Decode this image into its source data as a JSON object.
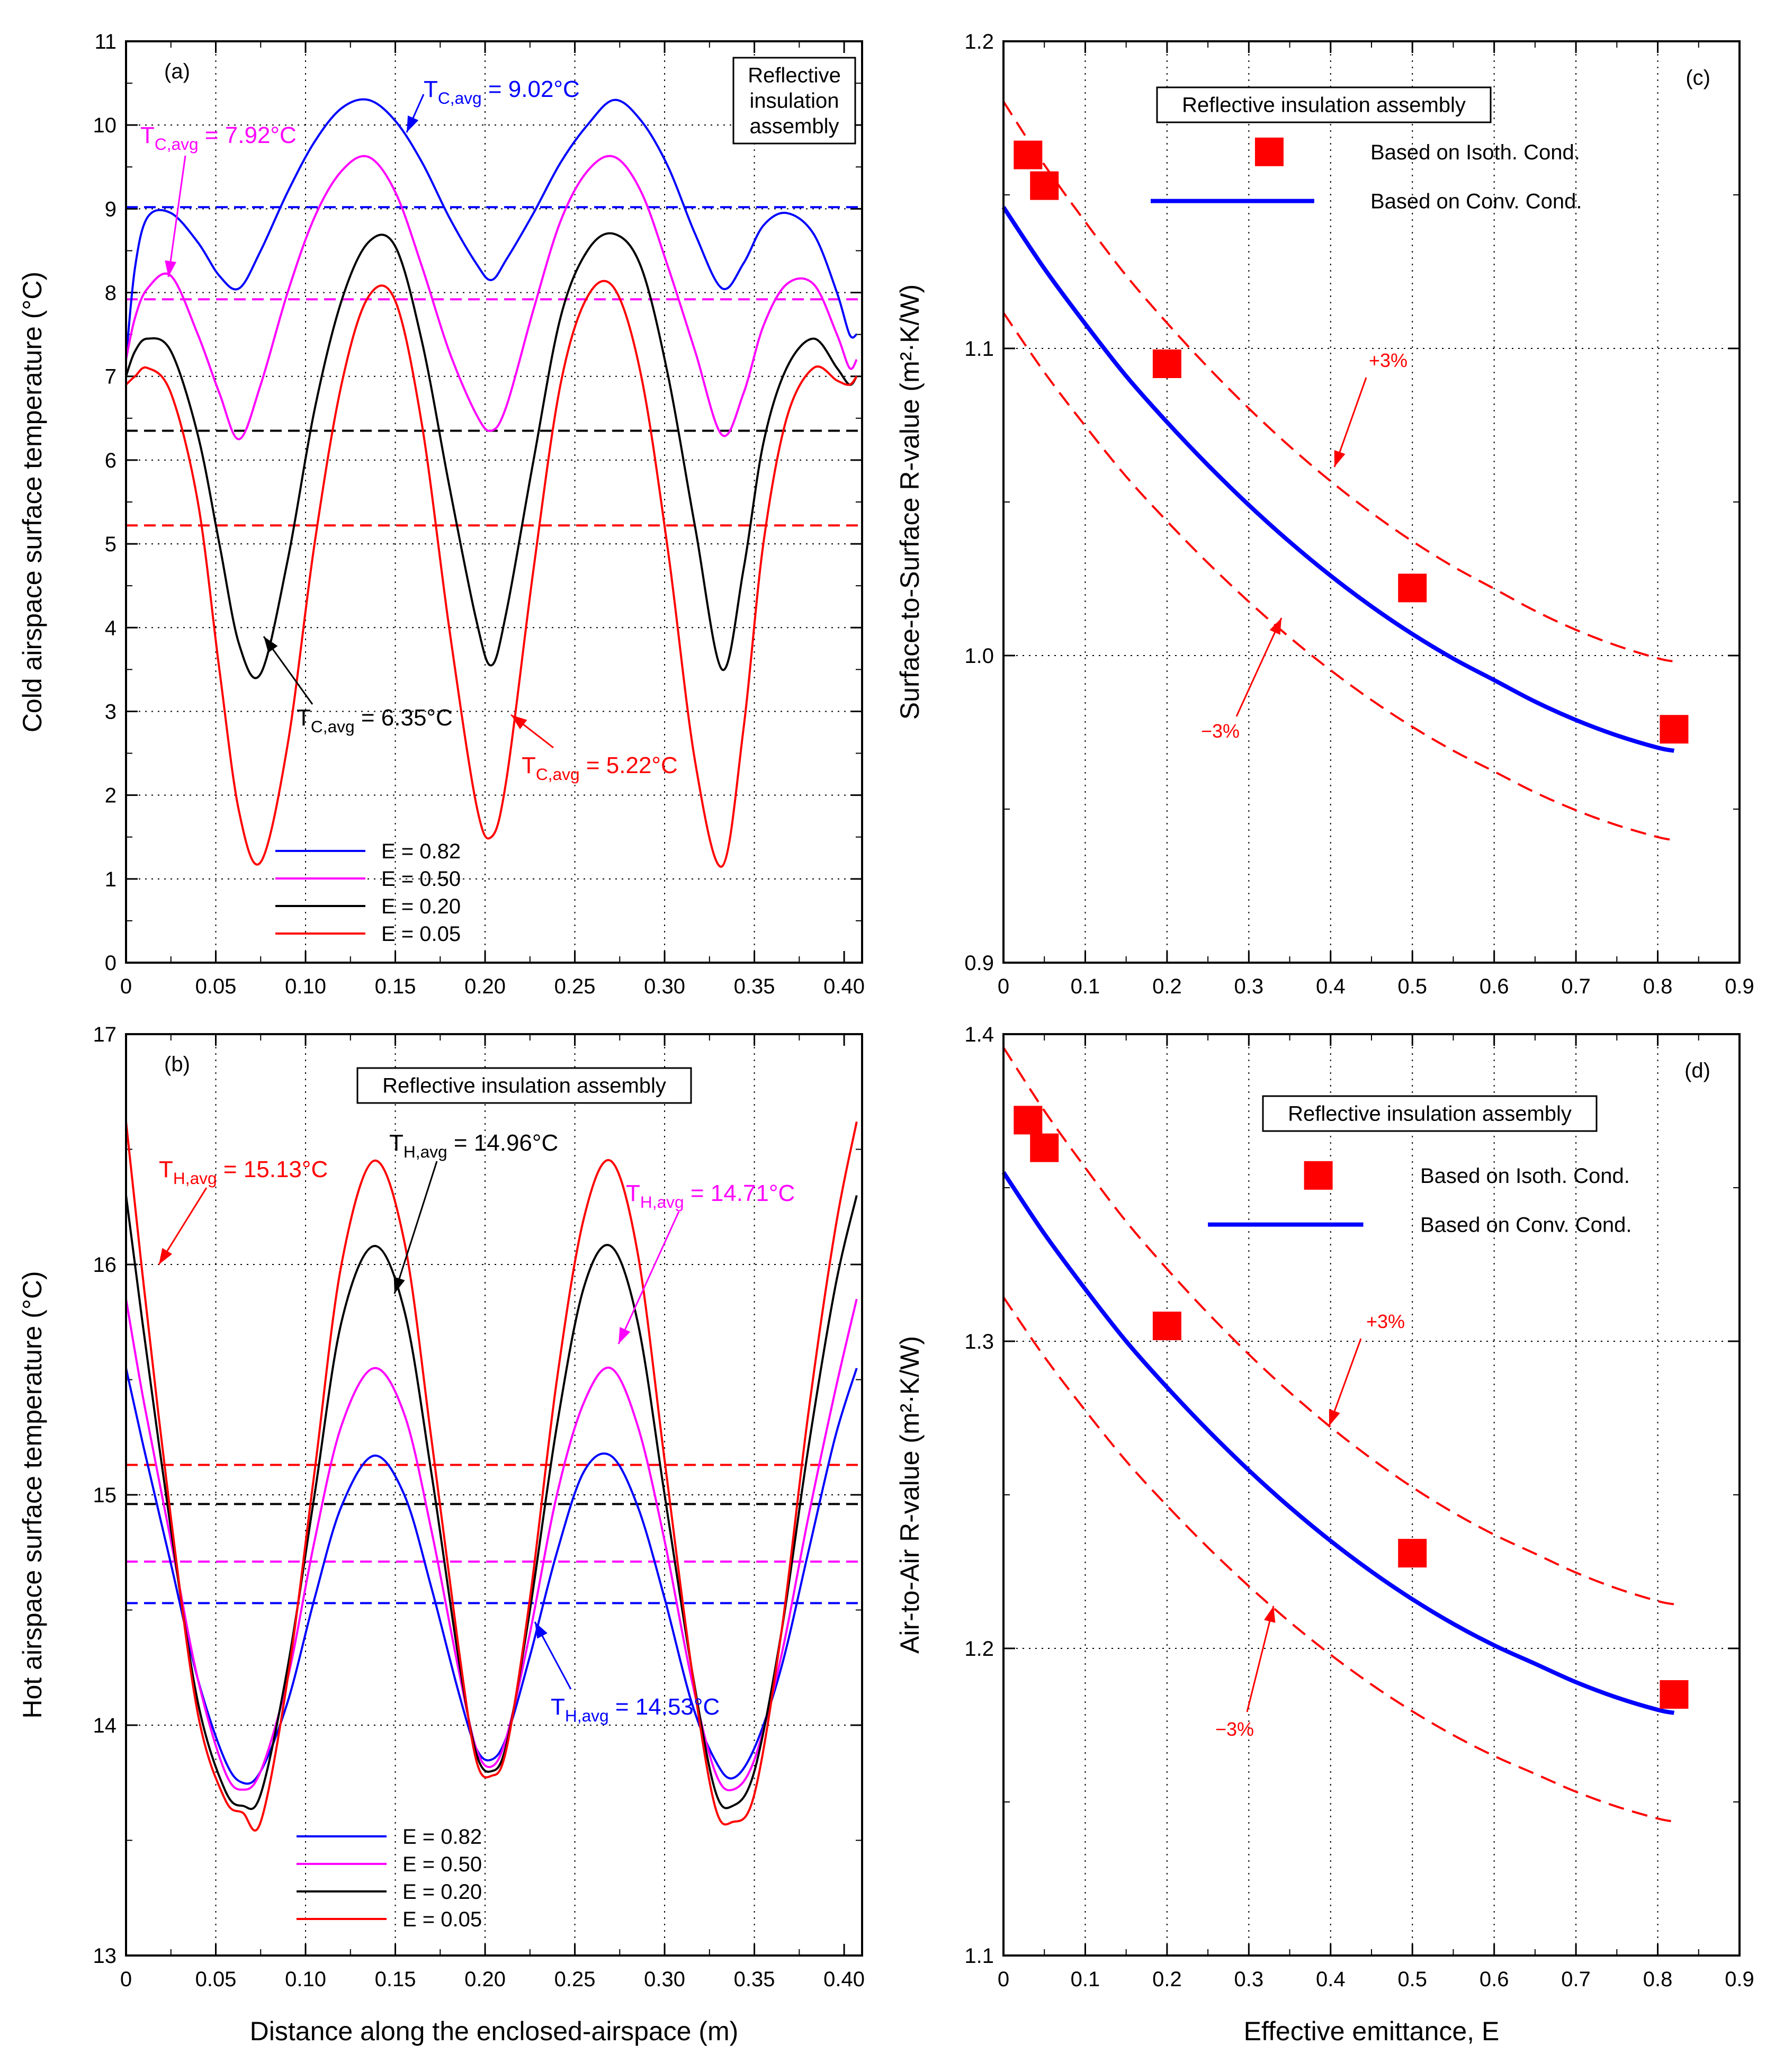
{
  "chart_data": [
    {
      "id": "a",
      "type": "line",
      "panel_label": "(a)",
      "title": "",
      "xlabel": "",
      "ylabel": "Cold airspace surface temperature (°C)",
      "xlim": [
        0,
        0.41
      ],
      "ylim": [
        0,
        11
      ],
      "xticks": [
        "0",
        "0.05",
        "0.10",
        "0.15",
        "0.20",
        "0.25",
        "0.30",
        "0.35",
        "0.40"
      ],
      "yticks": [
        "0",
        "1",
        "2",
        "3",
        "4",
        "5",
        "6",
        "7",
        "8",
        "9",
        "10",
        "11"
      ],
      "grid": true,
      "box_label": [
        "Reflective",
        "insulation",
        "assembly"
      ],
      "legend": {
        "position": "bottom-left"
      },
      "x": [
        0,
        0.005,
        0.012,
        0.025,
        0.04,
        0.052,
        0.063,
        0.075,
        0.09,
        0.105,
        0.12,
        0.135,
        0.15,
        0.165,
        0.18,
        0.195,
        0.2035,
        0.212,
        0.227,
        0.242,
        0.257,
        0.272,
        0.287,
        0.302,
        0.317,
        0.332,
        0.344,
        0.355,
        0.368,
        0.383,
        0.396,
        0.403,
        0.407
      ],
      "series": [
        {
          "name": "E = 0.82",
          "color": "#0000ff",
          "avg": 9.02,
          "values": [
            7.2,
            8.3,
            8.9,
            8.95,
            8.6,
            8.2,
            8.05,
            8.5,
            9.2,
            9.8,
            10.2,
            10.3,
            10.05,
            9.55,
            8.9,
            8.35,
            8.15,
            8.4,
            8.95,
            9.55,
            10.0,
            10.3,
            10.05,
            9.5,
            8.7,
            8.05,
            8.35,
            8.8,
            8.95,
            8.7,
            8.0,
            7.5,
            7.5
          ]
        },
        {
          "name": "E = 0.50",
          "color": "#ff00ff",
          "avg": 7.92,
          "values": [
            7.2,
            7.7,
            8.05,
            8.2,
            7.5,
            6.8,
            6.25,
            6.9,
            8.0,
            8.9,
            9.45,
            9.62,
            9.2,
            8.3,
            7.3,
            6.55,
            6.35,
            6.65,
            7.8,
            8.85,
            9.45,
            9.62,
            9.2,
            8.3,
            7.3,
            6.3,
            6.8,
            7.6,
            8.1,
            8.1,
            7.5,
            7.1,
            7.2
          ]
        },
        {
          "name": "E = 0.20",
          "color": "#000000",
          "avg": 6.35,
          "values": [
            7.0,
            7.3,
            7.45,
            7.3,
            6.3,
            5.0,
            3.8,
            3.45,
            4.8,
            6.6,
            7.9,
            8.6,
            8.55,
            7.4,
            5.7,
            4.1,
            3.55,
            4.2,
            6.0,
            7.7,
            8.5,
            8.7,
            8.3,
            7.0,
            5.2,
            3.5,
            4.7,
            6.2,
            7.1,
            7.45,
            7.1,
            6.9,
            7.0
          ]
        },
        {
          "name": "E = 0.05",
          "color": "#ff0000",
          "avg": 5.22,
          "values": [
            6.9,
            7.0,
            7.1,
            6.8,
            5.5,
            3.5,
            1.8,
            1.2,
            2.6,
            5.0,
            6.9,
            7.95,
            7.9,
            6.4,
            4.0,
            1.9,
            1.5,
            2.2,
            4.7,
            6.9,
            7.95,
            8.05,
            7.0,
            4.9,
            2.4,
            1.15,
            2.8,
            5.0,
            6.5,
            7.1,
            6.95,
            6.9,
            7.0
          ]
        }
      ],
      "annotations": [
        {
          "base": "T",
          "sub": "C,avg",
          "text": " = 9.02°C",
          "color": "#0000ff"
        },
        {
          "base": "T",
          "sub": "C,avg",
          "text": " = 7.92°C",
          "color": "#ff00ff"
        },
        {
          "base": "T",
          "sub": "C,avg",
          "text": " = 6.35°C",
          "color": "#000000"
        },
        {
          "base": "T",
          "sub": "C,avg",
          "text": " = 5.22°C",
          "color": "#ff0000"
        }
      ]
    },
    {
      "id": "b",
      "type": "line",
      "panel_label": "(b)",
      "title": "",
      "xlabel": "Distance along the enclosed-airspace (m)",
      "ylabel": "Hot airspace surface temperature (°C)",
      "xlim": [
        0,
        0.41
      ],
      "ylim": [
        13,
        17
      ],
      "xticks": [
        "0",
        "0.05",
        "0.10",
        "0.15",
        "0.20",
        "0.25",
        "0.30",
        "0.35",
        "0.40"
      ],
      "yticks": [
        "13",
        "14",
        "15",
        "16",
        "17"
      ],
      "grid": true,
      "box_label": [
        "Reflective insulation assembly"
      ],
      "legend": {
        "position": "bottom-left"
      },
      "x": [
        0,
        0.01,
        0.025,
        0.04,
        0.055,
        0.065,
        0.075,
        0.09,
        0.105,
        0.12,
        0.138,
        0.155,
        0.17,
        0.185,
        0.195,
        0.2035,
        0.212,
        0.225,
        0.24,
        0.255,
        0.27,
        0.285,
        0.3,
        0.315,
        0.328,
        0.338,
        0.35,
        0.365,
        0.38,
        0.395,
        0.407
      ],
      "series": [
        {
          "name": "E = 0.82",
          "color": "#0000ff",
          "avg": 14.53,
          "values": [
            15.55,
            15.2,
            14.7,
            14.2,
            13.85,
            13.75,
            13.8,
            14.1,
            14.55,
            14.95,
            15.17,
            15.0,
            14.6,
            14.15,
            13.9,
            13.85,
            13.95,
            14.3,
            14.75,
            15.1,
            15.17,
            14.95,
            14.55,
            14.1,
            13.85,
            13.77,
            13.9,
            14.25,
            14.75,
            15.25,
            15.55
          ]
        },
        {
          "name": "E = 0.50",
          "color": "#ff00ff",
          "avg": 14.71,
          "values": [
            15.85,
            15.4,
            14.8,
            14.2,
            13.8,
            13.72,
            13.8,
            14.2,
            14.8,
            15.3,
            15.55,
            15.35,
            14.85,
            14.25,
            13.9,
            13.82,
            13.95,
            14.4,
            15.0,
            15.4,
            15.55,
            15.3,
            14.8,
            14.2,
            13.8,
            13.72,
            13.85,
            14.3,
            14.9,
            15.45,
            15.85
          ]
        },
        {
          "name": "E = 0.20",
          "color": "#000000",
          "avg": 14.96,
          "values": [
            16.3,
            15.7,
            14.85,
            14.1,
            13.72,
            13.65,
            13.7,
            14.25,
            15.0,
            15.75,
            16.08,
            15.8,
            15.1,
            14.3,
            13.88,
            13.8,
            13.92,
            14.5,
            15.3,
            15.9,
            16.08,
            15.75,
            15.0,
            14.25,
            13.72,
            13.65,
            13.8,
            14.4,
            15.2,
            15.9,
            16.3
          ]
        },
        {
          "name": "E = 0.05",
          "color": "#ff0000",
          "avg": 15.13,
          "values": [
            16.62,
            15.9,
            14.9,
            14.05,
            13.68,
            13.62,
            13.58,
            14.2,
            15.1,
            16.0,
            16.45,
            16.1,
            15.25,
            14.35,
            13.85,
            13.78,
            13.9,
            14.55,
            15.5,
            16.2,
            16.45,
            16.05,
            15.15,
            14.25,
            13.65,
            13.58,
            13.7,
            14.4,
            15.35,
            16.15,
            16.62
          ]
        }
      ],
      "annotations": [
        {
          "base": "T",
          "sub": "H,avg",
          "text": " = 15.13°C",
          "color": "#ff0000"
        },
        {
          "base": "T",
          "sub": "H,avg",
          "text": " = 14.96°C",
          "color": "#000000"
        },
        {
          "base": "T",
          "sub": "H,avg",
          "text": " = 14.71°C",
          "color": "#ff00ff"
        },
        {
          "base": "T",
          "sub": "H,avg",
          "text": " = 14.53°C",
          "color": "#0000ff"
        }
      ]
    },
    {
      "id": "c",
      "type": "scatter",
      "panel_label": "(c)",
      "title": "",
      "xlabel": "",
      "ylabel": "Surface-to-Surface R-value (m²·K/W)",
      "xlim": [
        0,
        0.9
      ],
      "ylim": [
        0.9,
        1.2
      ],
      "xticks": [
        "0",
        "0.1",
        "0.2",
        "0.3",
        "0.4",
        "0.5",
        "0.6",
        "0.7",
        "0.8",
        "0.9"
      ],
      "yticks": [
        "0.9",
        "1.0",
        "1.1",
        "1.2"
      ],
      "grid": true,
      "box_label": [
        "Reflective insulation assembly"
      ],
      "legend": {
        "position": "top-right"
      },
      "points": {
        "name": "Based on Isoth. Cond.",
        "color": "#ff0000",
        "x": [
          0.03,
          0.05,
          0.2,
          0.5,
          0.82
        ],
        "y": [
          1.163,
          1.153,
          1.095,
          1.022,
          0.976
        ]
      },
      "curve": {
        "name": "Based on Conv. Cond.",
        "color": "#0000ff",
        "x": [
          0,
          0.05,
          0.1,
          0.15,
          0.2,
          0.25,
          0.3,
          0.35,
          0.4,
          0.45,
          0.5,
          0.55,
          0.6,
          0.65,
          0.7,
          0.75,
          0.8,
          0.82
        ],
        "y": [
          1.146,
          1.126,
          1.108,
          1.091,
          1.076,
          1.062,
          1.049,
          1.037,
          1.026,
          1.016,
          1.007,
          0.999,
          0.992,
          0.985,
          0.979,
          0.974,
          0.97,
          0.969
        ]
      },
      "bounds": {
        "color": "#ff0000",
        "plus_label": "+3%",
        "minus_label": "−3%",
        "percent": 3
      },
      "legend_sample": {
        "x": [
          0.27,
          0.38
        ],
        "y": 1.164
      },
      "legend_curve_sample": {
        "x": [
          0.18,
          0.38
        ],
        "y": 1.148
      }
    },
    {
      "id": "d",
      "type": "scatter",
      "panel_label": "(d)",
      "title": "",
      "xlabel": "Effective emittance, E",
      "ylabel": "Air-to-Air R-value (m²·K/W)",
      "xlim": [
        0,
        0.9
      ],
      "ylim": [
        1.1,
        1.4
      ],
      "xticks": [
        "0",
        "0.1",
        "0.2",
        "0.3",
        "0.4",
        "0.5",
        "0.6",
        "0.7",
        "0.8",
        "0.9"
      ],
      "yticks": [
        "1.1",
        "1.2",
        "1.3",
        "1.4"
      ],
      "grid": true,
      "box_label": [
        "Reflective insulation assembly"
      ],
      "legend": {
        "position": "top-right"
      },
      "points": {
        "name": "Based on Isoth. Cond.",
        "color": "#ff0000",
        "x": [
          0.03,
          0.05,
          0.2,
          0.5,
          0.82
        ],
        "y": [
          1.372,
          1.363,
          1.305,
          1.231,
          1.185
        ]
      },
      "curve": {
        "name": "Based on Conv. Cond.",
        "color": "#0000ff",
        "x": [
          0,
          0.05,
          0.1,
          0.15,
          0.2,
          0.25,
          0.3,
          0.35,
          0.4,
          0.45,
          0.5,
          0.55,
          0.6,
          0.65,
          0.7,
          0.75,
          0.8,
          0.82
        ],
        "y": [
          1.355,
          1.335,
          1.317,
          1.3,
          1.285,
          1.271,
          1.258,
          1.246,
          1.235,
          1.225,
          1.216,
          1.208,
          1.201,
          1.195,
          1.189,
          1.184,
          1.18,
          1.179
        ]
      },
      "bounds": {
        "color": "#ff0000",
        "plus_label": "+3%",
        "minus_label": "−3%",
        "percent": 3
      },
      "legend_sample": {
        "x": [
          0.33,
          0.44
        ],
        "y": 1.354
      },
      "legend_curve_sample": {
        "x": [
          0.25,
          0.44
        ],
        "y": 1.338
      }
    }
  ]
}
